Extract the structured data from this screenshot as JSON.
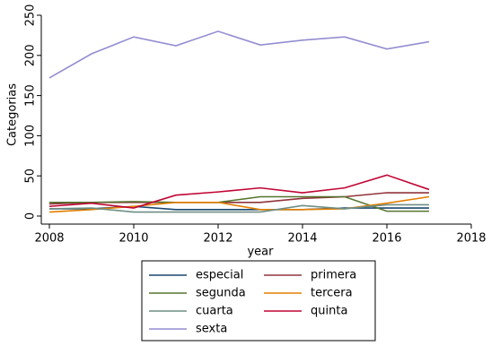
{
  "chart_data": {
    "type": "line",
    "xlabel": "year",
    "ylabel": "Categorias",
    "x": [
      2008,
      2009,
      2010,
      2011,
      2012,
      2013,
      2014,
      2015,
      2016,
      2017
    ],
    "series": [
      {
        "name": "especial",
        "color": "#1a476f",
        "values": [
          9,
          9,
          12,
          8,
          8,
          8,
          8,
          10,
          10,
          10
        ]
      },
      {
        "name": "primera",
        "color": "#90353b",
        "values": [
          15,
          17,
          17,
          17,
          17,
          17,
          22,
          24,
          29,
          29
        ]
      },
      {
        "name": "segunda",
        "color": "#55752f",
        "values": [
          17,
          17,
          18,
          17,
          17,
          24,
          24,
          24,
          6,
          6
        ]
      },
      {
        "name": "tercera",
        "color": "#e37e00",
        "values": [
          5,
          8,
          12,
          17,
          17,
          8,
          8,
          9,
          16,
          24
        ]
      },
      {
        "name": "cuarta",
        "color": "#6e8e84",
        "values": [
          9,
          10,
          5,
          5,
          5,
          5,
          13,
          9,
          14,
          14
        ]
      },
      {
        "name": "quinta",
        "color": "#c10534",
        "values": [
          12,
          16,
          10,
          26,
          30,
          35,
          29,
          35,
          51,
          33
        ]
      },
      {
        "name": "sexta",
        "color": "#938dd2",
        "values": [
          172,
          202,
          223,
          212,
          230,
          213,
          219,
          223,
          208,
          217
        ]
      }
    ],
    "xlim": [
      2008,
      2018
    ],
    "xticks": [
      2008,
      2010,
      2012,
      2014,
      2016,
      2018
    ],
    "ylim": [
      0,
      250
    ],
    "yticks": [
      0,
      50,
      100,
      150,
      200,
      250
    ],
    "grid": false,
    "legend": "bottom"
  }
}
